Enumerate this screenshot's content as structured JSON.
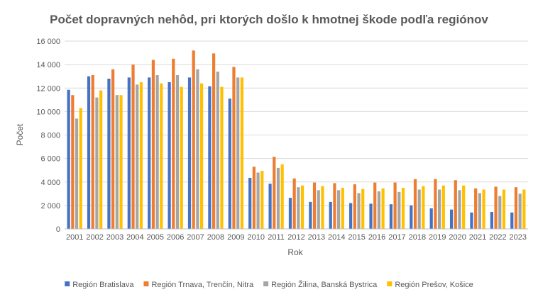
{
  "chart_data": {
    "type": "bar",
    "title": "Počet dopravných nehôd, pri ktorých došlo k hmotnej škode podľa regiónov",
    "xlabel": "Rok",
    "ylabel": "Počet",
    "ylim": [
      0,
      16000
    ],
    "yticks": [
      0,
      2000,
      4000,
      6000,
      8000,
      10000,
      12000,
      14000,
      16000
    ],
    "ytick_labels": [
      "0",
      "2 000",
      "4 000",
      "6 000",
      "8 000",
      "10 000",
      "12 000",
      "14 000",
      "16 000"
    ],
    "grid": true,
    "legend_position": "bottom",
    "categories": [
      "2001",
      "2002",
      "2003",
      "2004",
      "2005",
      "2006",
      "2007",
      "2008",
      "2009",
      "2010",
      "2011",
      "2012",
      "2013",
      "2014",
      "2015",
      "2016",
      "2017",
      "2018",
      "2019",
      "2020",
      "2021",
      "2022",
      "2023"
    ],
    "series": [
      {
        "name": "Región Bratislava",
        "color": "#4472c4",
        "values": [
          11850,
          13000,
          12800,
          12900,
          12900,
          12500,
          12900,
          12150,
          11100,
          4350,
          3850,
          2650,
          2300,
          2300,
          2200,
          2150,
          2100,
          2000,
          1750,
          1650,
          1400,
          1450,
          1400
        ]
      },
      {
        "name": "Región Trnava, Trenčín, Nitra",
        "color": "#ed7d31",
        "values": [
          11400,
          13100,
          13600,
          14000,
          14400,
          14500,
          15200,
          14950,
          13800,
          5300,
          6150,
          4300,
          3950,
          3900,
          3800,
          3950,
          3950,
          4250,
          4250,
          4150,
          3450,
          3600,
          3550
        ]
      },
      {
        "name": "Región Žilina, Banská Bystrica",
        "color": "#a5a5a5",
        "values": [
          9400,
          11200,
          11400,
          12300,
          13100,
          13100,
          13600,
          13400,
          12900,
          4800,
          5200,
          3550,
          3300,
          3300,
          3050,
          3200,
          3150,
          3350,
          3350,
          3300,
          3050,
          2800,
          3000
        ]
      },
      {
        "name": "Región Prešov, Košice",
        "color": "#ffc000",
        "values": [
          10300,
          11800,
          11400,
          12500,
          12400,
          12100,
          12400,
          12100,
          12900,
          4950,
          5500,
          3700,
          3650,
          3500,
          3400,
          3450,
          3500,
          3650,
          3700,
          3700,
          3350,
          3350,
          3350
        ]
      }
    ]
  }
}
